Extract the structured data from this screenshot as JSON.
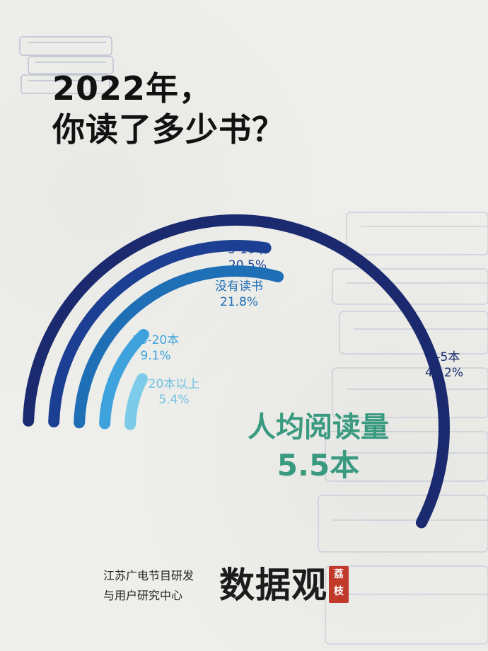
{
  "title": {
    "line1": "2022年，",
    "line2": "你读了多少书？"
  },
  "colors": {
    "background": "#eeeeeb",
    "accent_green": "#3a9a80",
    "series": [
      "#1b2a6e",
      "#1c3f93",
      "#1f6fb6",
      "#3ea3dc",
      "#7ccbe8"
    ]
  },
  "chart_data": {
    "type": "radial-bar",
    "title": "2022年，你读了多少书？",
    "series": [
      {
        "name": "1-5本",
        "value": 43.2,
        "label": "43.2%"
      },
      {
        "name": "5-10本",
        "value": 20.5,
        "label": "20.5%"
      },
      {
        "name": "没有读书",
        "value": 21.8,
        "label": "21.8%"
      },
      {
        "name": "10-20本",
        "value": 9.1,
        "label": "9.1%"
      },
      {
        "name": "20本以上",
        "value": 5.4,
        "label": "5.4%"
      }
    ]
  },
  "average": {
    "label": "人均阅读量",
    "value": "5.5本"
  },
  "footer": {
    "org_line1": "江苏广电节目研发",
    "org_line2": "与用户研究中心",
    "brand": "数据观",
    "seal_line1": "荔",
    "seal_line2": "枝"
  }
}
